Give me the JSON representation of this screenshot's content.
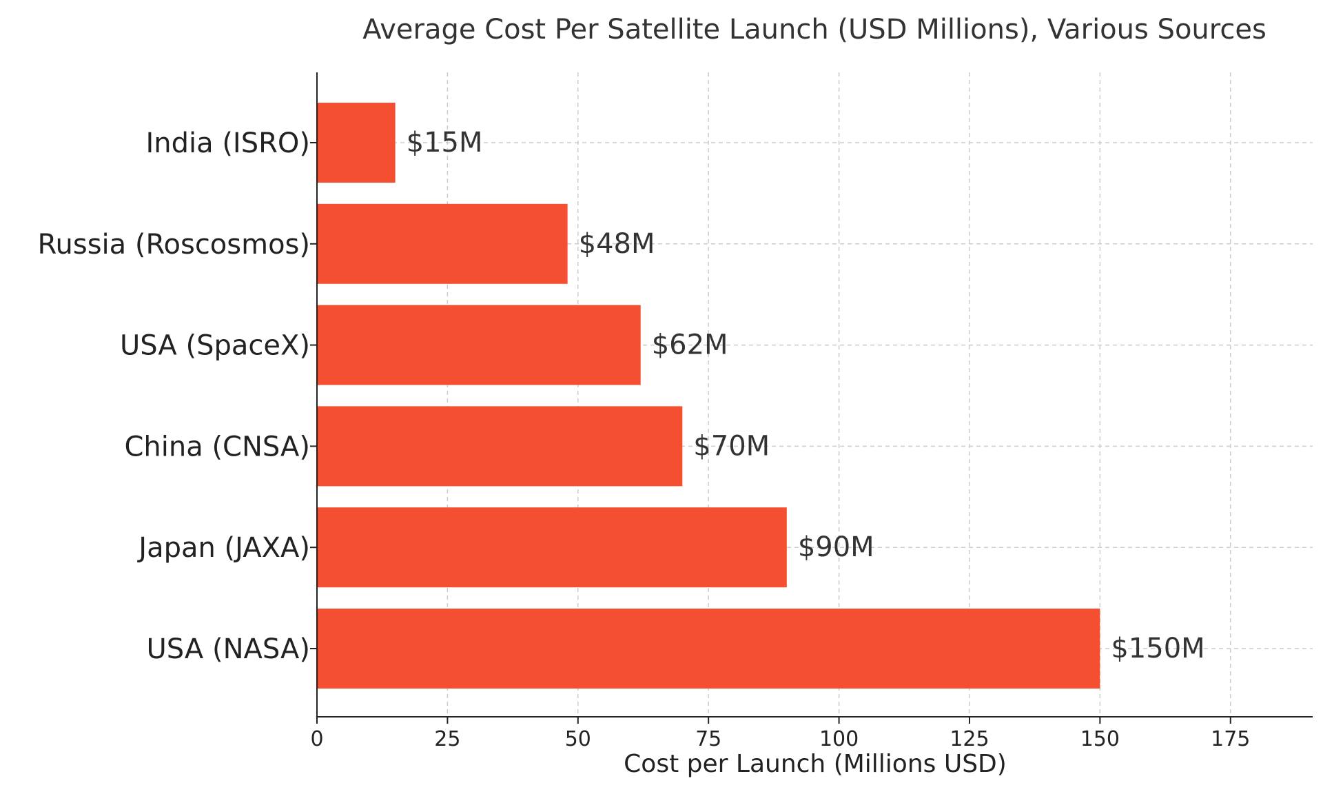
{
  "chart_data": {
    "type": "bar",
    "orientation": "horizontal",
    "title": "Average Cost Per Satellite Launch (USD Millions), Various Sources",
    "xlabel": "Cost per Launch (Millions USD)",
    "ylabel": "",
    "categories": [
      "India (ISRO)",
      "Russia (Roscosmos)",
      "USA (SpaceX)",
      "China (CNSA)",
      "Japan (JAXA)",
      "USA (NASA)"
    ],
    "values": [
      15,
      48,
      62,
      70,
      90,
      150
    ],
    "data_labels": [
      "$15M",
      "$48M",
      "$62M",
      "$70M",
      "$90M",
      "$150M"
    ],
    "xlim": [
      0,
      190
    ],
    "xticks": [
      0,
      25,
      50,
      75,
      100,
      125,
      150,
      175
    ],
    "xtick_labels": [
      "0",
      "25",
      "50",
      "75",
      "100",
      "125",
      "150",
      "175"
    ],
    "grid": true,
    "legend": "none",
    "bar_color": "#f44f30"
  }
}
